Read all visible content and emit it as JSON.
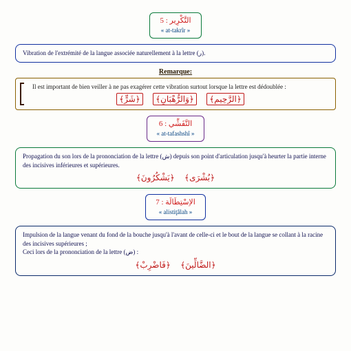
{
  "sec5": {
    "title_ar": "التَّكْرِير : 5",
    "title_lat": "« at-takrîr »",
    "border": "#0a7a3a",
    "def": "Vibration de l'extrémité de la langue associée naturellement à la lettre (ر).",
    "remarque_label": "Remarque:",
    "remarque_text": "Il est important de bien veiller à ne pas exagérer cette vibration surtout lorsque la lettre est dédoublée :",
    "examples": [
      "﴿الرَّحِيمِ﴾",
      "﴿وَالرُّهْبَانِ﴾",
      "﴿شَرٍّ﴾"
    ]
  },
  "sec6": {
    "title_ar": "التَّفَشِّي : 6",
    "title_lat": "« at-tafashshî »",
    "border": "#6a2a8a",
    "def_a": "Propagation du son lors de la prononciation de la lettre (ش) depuis son point d'articulation jusqu'à heurter la partie interne des incisives inférieures et supérieures.",
    "examples": [
      "﴿بُشْرَى﴾",
      "﴿يَشْكُرُونَ﴾"
    ]
  },
  "sec7": {
    "title_ar": "الاِسْتِطَالَة : 7",
    "title_lat": "« alistiţâlah »",
    "border": "#1030a0",
    "def_a": "Impulsion de la langue venant du fond de la bouche jusqu'à l'avant de celle-ci et le bout de la langue se collant à la racine des incisives supérieures ;",
    "def_b": "Ceci lors de la prononciation de la lettre (ض) :",
    "examples": [
      "﴿الضَّالِّينَ﴾",
      "﴿فَاضْرِبْ﴾"
    ]
  }
}
